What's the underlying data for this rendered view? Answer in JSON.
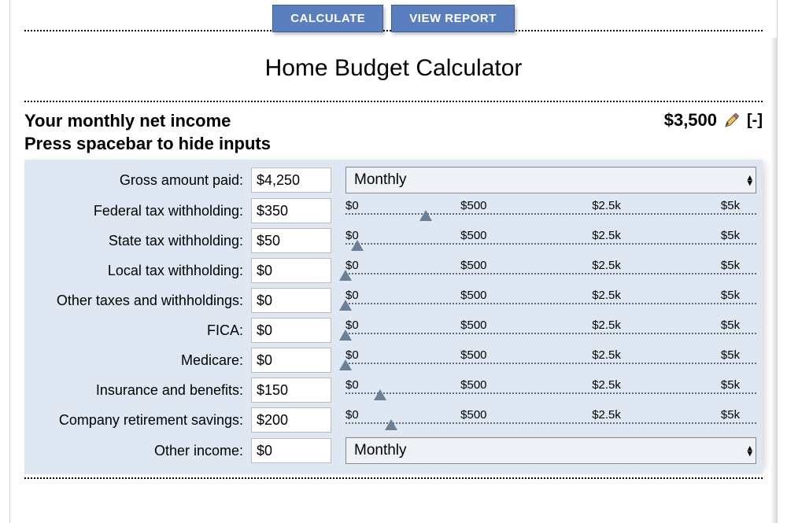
{
  "buttons": {
    "calculate": "CALCULATE",
    "view_report": "VIEW REPORT"
  },
  "title": "Home Budget Calculator",
  "section": {
    "heading_line1": "Your monthly net income",
    "heading_line2": "Press spacebar to hide inputs",
    "net_value": "$3,500",
    "collapse_symbol": "[-]"
  },
  "frequency_select1": "Monthly",
  "frequency_select2": "Monthly",
  "slider_ticks": [
    "$0",
    "$500",
    "$2.5k",
    "$5k"
  ],
  "slider_max": 5000,
  "rows": {
    "gross": {
      "label": "Gross amount paid:",
      "value": "$4,250",
      "kind": "select1"
    },
    "federal": {
      "label": "Federal tax withholding:",
      "value": "$350",
      "kind": "slider",
      "num": 350
    },
    "state": {
      "label": "State tax withholding:",
      "value": "$50",
      "kind": "slider",
      "num": 50
    },
    "local": {
      "label": "Local tax withholding:",
      "value": "$0",
      "kind": "slider",
      "num": 0
    },
    "othertax": {
      "label": "Other taxes and withholdings:",
      "value": "$0",
      "kind": "slider",
      "num": 0
    },
    "fica": {
      "label": "FICA:",
      "value": "$0",
      "kind": "slider",
      "num": 0
    },
    "medicare": {
      "label": "Medicare:",
      "value": "$0",
      "kind": "slider",
      "num": 0
    },
    "insurance": {
      "label": "Insurance and benefits:",
      "value": "$150",
      "kind": "slider",
      "num": 150
    },
    "retirement": {
      "label": "Company retirement savings:",
      "value": "$200",
      "kind": "slider",
      "num": 200
    },
    "otherinc": {
      "label": "Other income:",
      "value": "$0",
      "kind": "select2"
    }
  },
  "colors": {
    "button_bg": "#5a7fbf",
    "panel_bg": "#dfe8f2",
    "slider_handle": "#6b7f97"
  }
}
